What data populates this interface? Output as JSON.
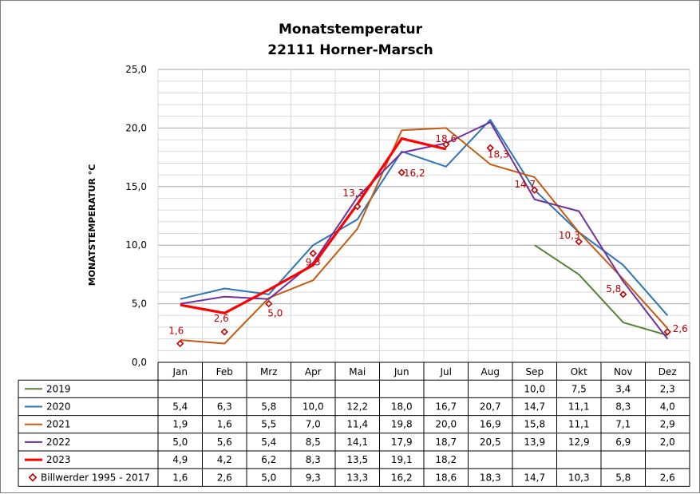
{
  "chart_data": {
    "type": "line",
    "title": "Monatstemperatur",
    "subtitle": "22111 Horner-Marsch",
    "ylabel": "MONATSTEMPERATUR  °C",
    "xlabel": "",
    "ylim": [
      0,
      25
    ],
    "y_ticks": [
      "0,0",
      "5,0",
      "10,0",
      "15,0",
      "20,0",
      "25,0"
    ],
    "grid": true,
    "categories": [
      "Jan",
      "Feb",
      "Mrz",
      "Apr",
      "Mai",
      "Jun",
      "Jul",
      "Aug",
      "Sep",
      "Okt",
      "Nov",
      "Dez"
    ],
    "series": [
      {
        "name": "2019",
        "color": "#548235",
        "style": "line",
        "values": [
          null,
          null,
          null,
          null,
          null,
          null,
          null,
          null,
          10.0,
          7.5,
          3.4,
          2.3
        ],
        "labels": [
          "",
          "",
          "",
          "",
          "",
          "",
          "",
          "",
          "10,0",
          "7,5",
          "3,4",
          "2,3"
        ]
      },
      {
        "name": "2020",
        "color": "#2e75b6",
        "style": "line",
        "values": [
          5.4,
          6.3,
          5.8,
          10.0,
          12.2,
          18.0,
          16.7,
          20.7,
          14.7,
          11.1,
          8.3,
          4.0
        ],
        "labels": [
          "5,4",
          "6,3",
          "5,8",
          "10,0",
          "12,2",
          "18,0",
          "16,7",
          "20,7",
          "14,7",
          "11,1",
          "8,3",
          "4,0"
        ]
      },
      {
        "name": "2021",
        "color": "#c55a11",
        "style": "line",
        "values": [
          1.9,
          1.6,
          5.5,
          7.0,
          11.4,
          19.8,
          20.0,
          16.9,
          15.8,
          11.1,
          7.1,
          2.9
        ],
        "labels": [
          "1,9",
          "1,6",
          "5,5",
          "7,0",
          "11,4",
          "19,8",
          "20,0",
          "16,9",
          "15,8",
          "11,1",
          "7,1",
          "2,9"
        ]
      },
      {
        "name": "2022",
        "color": "#7030a0",
        "style": "line",
        "values": [
          5.0,
          5.6,
          5.4,
          8.5,
          14.1,
          17.9,
          18.7,
          20.5,
          13.9,
          12.9,
          6.9,
          2.0
        ],
        "labels": [
          "5,0",
          "5,6",
          "5,4",
          "8,5",
          "14,1",
          "17,9",
          "18,7",
          "20,5",
          "13,9",
          "12,9",
          "6,9",
          "2,0"
        ]
      },
      {
        "name": "2023",
        "color": "#ff0000",
        "style": "thick-line",
        "values": [
          4.9,
          4.2,
          6.2,
          8.3,
          13.5,
          19.1,
          18.2,
          null,
          null,
          null,
          null,
          null
        ],
        "labels": [
          "4,9",
          "4,2",
          "6,2",
          "8,3",
          "13,5",
          "19,1",
          "18,2",
          "",
          "",
          "",
          "",
          ""
        ]
      },
      {
        "name": "Billwerder 1995 - 2017",
        "color": "#c00000",
        "style": "marker",
        "values": [
          1.6,
          2.6,
          5.0,
          9.3,
          13.3,
          16.2,
          18.6,
          18.3,
          14.7,
          10.3,
          5.8,
          2.6
        ],
        "labels": [
          "1,6",
          "2,6",
          "5,0",
          "9,3",
          "13,3",
          "16,2",
          "18,6",
          "18,3",
          "14,7",
          "10,3",
          "5,8",
          "2,6"
        ]
      }
    ]
  }
}
